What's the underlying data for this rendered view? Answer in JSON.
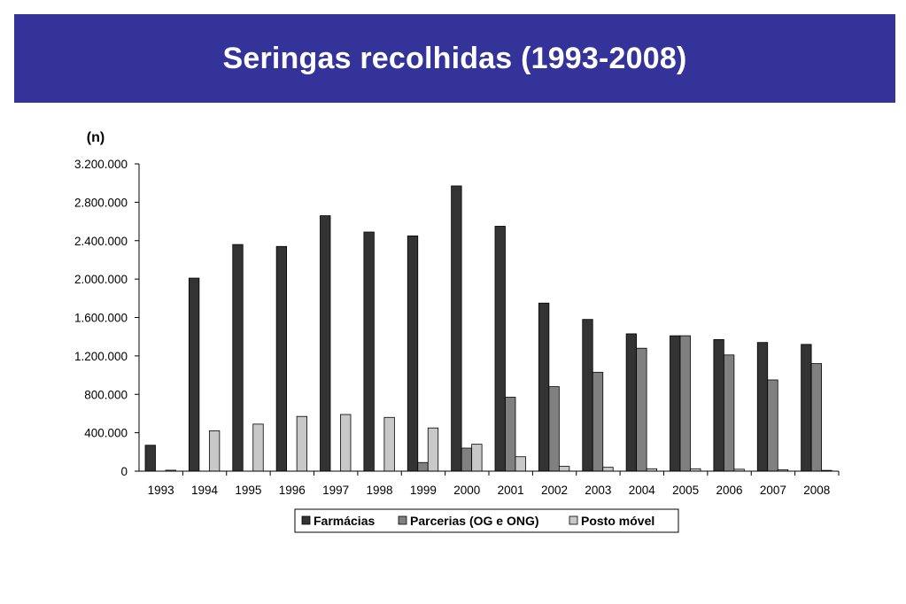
{
  "slide": {
    "title": "Seringas recolhidas (1993-2008)"
  },
  "chart_data": {
    "type": "bar",
    "unit_label": "(n)",
    "categories": [
      "1993",
      "1994",
      "1995",
      "1996",
      "1997",
      "1998",
      "1999",
      "2000",
      "2001",
      "2002",
      "2003",
      "2004",
      "2005",
      "2006",
      "2007",
      "2008"
    ],
    "series": [
      {
        "name": "Farmácias",
        "color": "#333333",
        "values": [
          270000,
          2010000,
          2360000,
          2340000,
          2660000,
          2490000,
          2450000,
          2970000,
          2550000,
          1750000,
          1580000,
          1430000,
          1410000,
          1370000,
          1340000,
          1320000
        ]
      },
      {
        "name": "Parcerias (OG e ONG)",
        "color": "#808080",
        "values": [
          0,
          0,
          0,
          0,
          0,
          0,
          90000,
          240000,
          770000,
          880000,
          1030000,
          1280000,
          1410000,
          1210000,
          950000,
          1120000
        ]
      },
      {
        "name": "Posto móvel",
        "color": "#c8c8c8",
        "values": [
          10000,
          420000,
          490000,
          570000,
          590000,
          560000,
          450000,
          280000,
          150000,
          50000,
          40000,
          25000,
          25000,
          20000,
          15000,
          8000
        ]
      }
    ],
    "ylim": [
      0,
      3200000
    ],
    "yticks": [
      0,
      400000,
      800000,
      1200000,
      1600000,
      2000000,
      2400000,
      2800000,
      3200000
    ],
    "ytick_labels": [
      "0",
      "400.000",
      "800.000",
      "1.200.000",
      "1.600.000",
      "2.000.000",
      "2.400.000",
      "2.800.000",
      "3.200.000"
    ],
    "grid": false,
    "legend_position": "bottom"
  }
}
